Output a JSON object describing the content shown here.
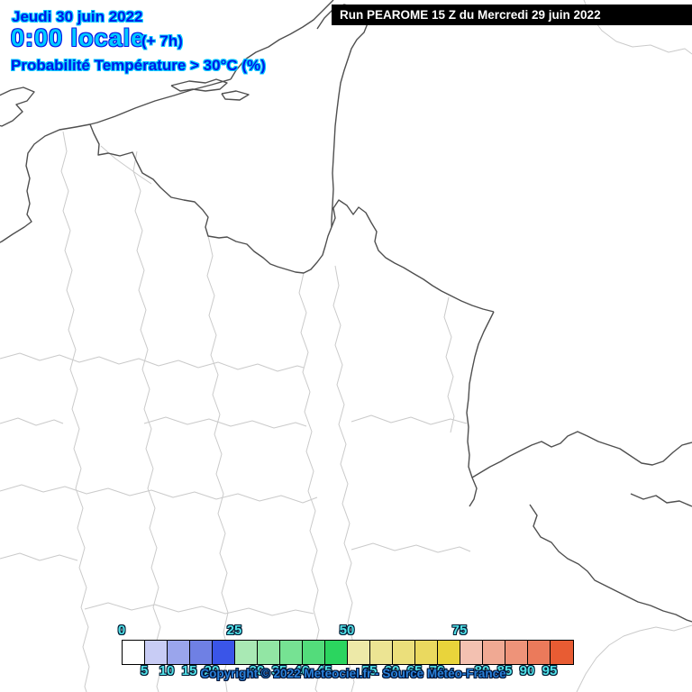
{
  "header": {
    "date": "Jeudi 30 juin 2022",
    "time": "0:00 locale",
    "offset": "(+ 7h)",
    "subtitle": "Probabilité Température > 30°C (%)"
  },
  "run_banner": {
    "text": "Run PEAROME 15 Z du Mercredi 29 juin 2022",
    "background": "#000000",
    "foreground": "#ffffff"
  },
  "footer": {
    "copyright": "Copyright © 2022 Meteociel.fr - Source Météo-France"
  },
  "colors": {
    "header_blue": "#0018e8",
    "header_cyan": "#00ccff",
    "legend_number_fill": "#52e2e8",
    "country_border": "#4f4f4f",
    "department_border": "#cacaca"
  },
  "legend": {
    "top_labels": [
      "0",
      "25",
      "50",
      "75"
    ],
    "bottom_labels": [
      "5",
      "10",
      "15",
      "20",
      "30",
      "35",
      "40",
      "45",
      "55",
      "60",
      "65",
      "70",
      "80",
      "85",
      "90",
      "95"
    ],
    "cells": [
      {
        "range": "0-5",
        "color": "#ffffff"
      },
      {
        "range": "5-10",
        "color": "#c8ccf5"
      },
      {
        "range": "10-15",
        "color": "#9aa5ec"
      },
      {
        "range": "15-20",
        "color": "#6f80e4"
      },
      {
        "range": "20-25",
        "color": "#3a55e8"
      },
      {
        "range": "25-30",
        "color": "#a9e9b4"
      },
      {
        "range": "30-35",
        "color": "#92e6a4"
      },
      {
        "range": "35-40",
        "color": "#76e293"
      },
      {
        "range": "40-45",
        "color": "#53dc7b"
      },
      {
        "range": "45-50",
        "color": "#2bd55f"
      },
      {
        "range": "50-55",
        "color": "#ede9a8"
      },
      {
        "range": "55-60",
        "color": "#ece493"
      },
      {
        "range": "60-65",
        "color": "#ebdf7b"
      },
      {
        "range": "65-70",
        "color": "#ead95f"
      },
      {
        "range": "70-75",
        "color": "#e9d43b"
      },
      {
        "range": "75-80",
        "color": "#f3c1b1"
      },
      {
        "range": "80-85",
        "color": "#f0a993"
      },
      {
        "range": "85-90",
        "color": "#ee9379"
      },
      {
        "range": "90-95",
        "color": "#eb7a5b"
      },
      {
        "range": "95-100",
        "color": "#e85c33"
      }
    ]
  }
}
